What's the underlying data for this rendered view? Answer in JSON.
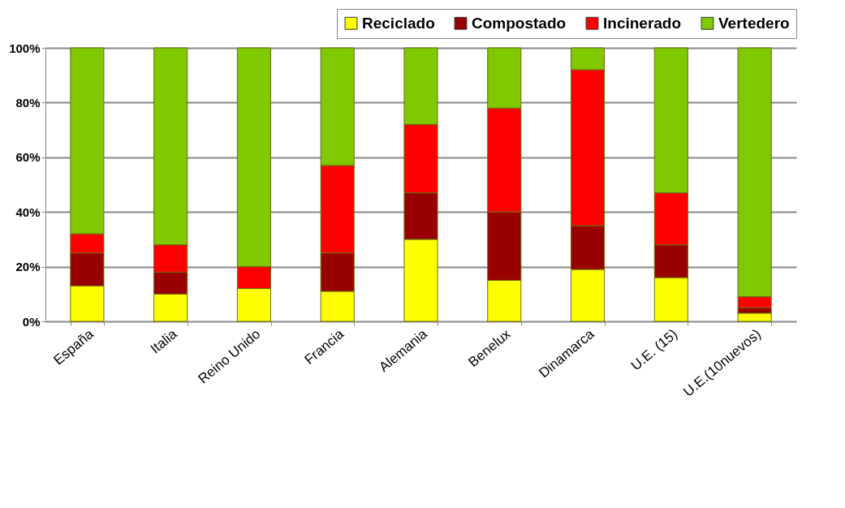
{
  "chart_data": {
    "type": "bar",
    "stacked": true,
    "categories": [
      "España",
      "Italia",
      "Reino Unido",
      "Francia",
      "Alemania",
      "Benelux",
      "Dinamarca",
      "U.E. (15)",
      "U.E.(10nuevos)"
    ],
    "series": [
      {
        "name": "Reciclado",
        "color": "#ffff00",
        "values": [
          13,
          10,
          12,
          11,
          30,
          15,
          19,
          16,
          3
        ]
      },
      {
        "name": "Compostado",
        "color": "#990000",
        "values": [
          12,
          8,
          null,
          14,
          17,
          25,
          16,
          12,
          2
        ]
      },
      {
        "name": "Incinerado",
        "color": "#ff0000",
        "values": [
          7,
          10,
          8,
          32,
          25,
          38,
          57,
          19,
          4
        ]
      },
      {
        "name": "Vertedero",
        "color": "#80c800",
        "values": [
          68,
          72,
          80,
          43,
          28,
          22,
          8,
          53,
          91
        ]
      }
    ],
    "ylim": [
      0,
      100
    ],
    "yticks": [
      {
        "value": 0,
        "label": "0%"
      },
      {
        "value": 20,
        "label": "20%"
      },
      {
        "value": 40,
        "label": "40%"
      },
      {
        "value": 60,
        "label": "60%"
      },
      {
        "value": 80,
        "label": "80%"
      },
      {
        "value": 100,
        "label": "100%"
      }
    ],
    "grid": "y",
    "legend": "top"
  }
}
